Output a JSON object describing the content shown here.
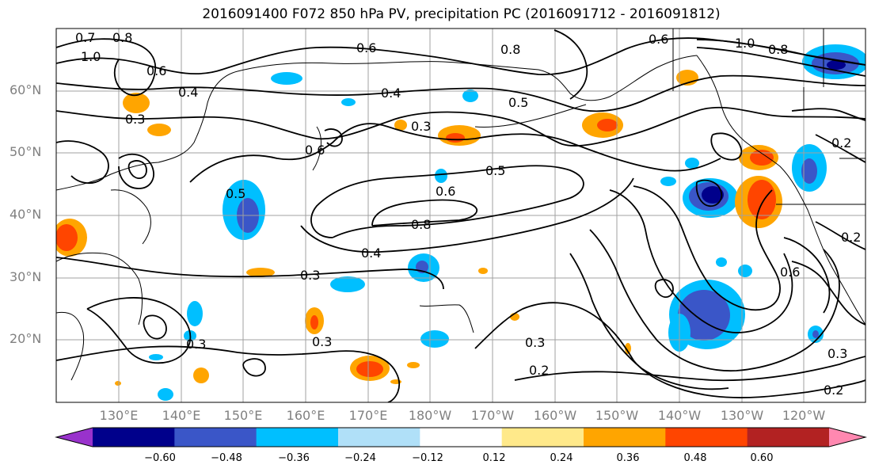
{
  "title": "2016091400 F072 850 hPa PV, precipitation PC (2016091712 - 2016091812)",
  "lat_labels": [
    "60°N",
    "50°N",
    "40°N",
    "30°N",
    "20°N"
  ],
  "lon_labels": [
    "130°E",
    "140°E",
    "150°E",
    "160°E",
    "170°E",
    "180°W",
    "170°W",
    "160°W",
    "150°W",
    "140°W",
    "130°W",
    "120°W"
  ],
  "contour_labels": [
    "0.7",
    "0.8",
    "1.0",
    "0.6",
    "0.4",
    "0.3",
    "0.4",
    "0.6",
    "0.8",
    "0.5",
    "0.3",
    "0.6",
    "1.0",
    "0.8",
    "0.6",
    "0.5",
    "0.6",
    "0.8",
    "0.4",
    "0.3",
    "0.2",
    "0.3",
    "0.2",
    "0.3",
    "0.6",
    "0.2",
    "0.2",
    "0.3",
    "0.5",
    "0.3"
  ],
  "colorbar": {
    "colors": [
      "#9932cc",
      "#00008b",
      "#3a56c8",
      "#00bfff",
      "#b0e0f8",
      "#ffffff",
      "#ffe98a",
      "#ffa500",
      "#ff4500",
      "#b22222",
      "#ff88b0"
    ],
    "ticks": [
      "−0.60",
      "−0.48",
      "−0.36",
      "−0.24",
      "−0.12",
      "0.12",
      "0.24",
      "0.36",
      "0.48",
      "0.60"
    ]
  },
  "colors": {
    "gridline": "#a0a0a0",
    "contour": "#000000",
    "label_gray": "#808080"
  }
}
